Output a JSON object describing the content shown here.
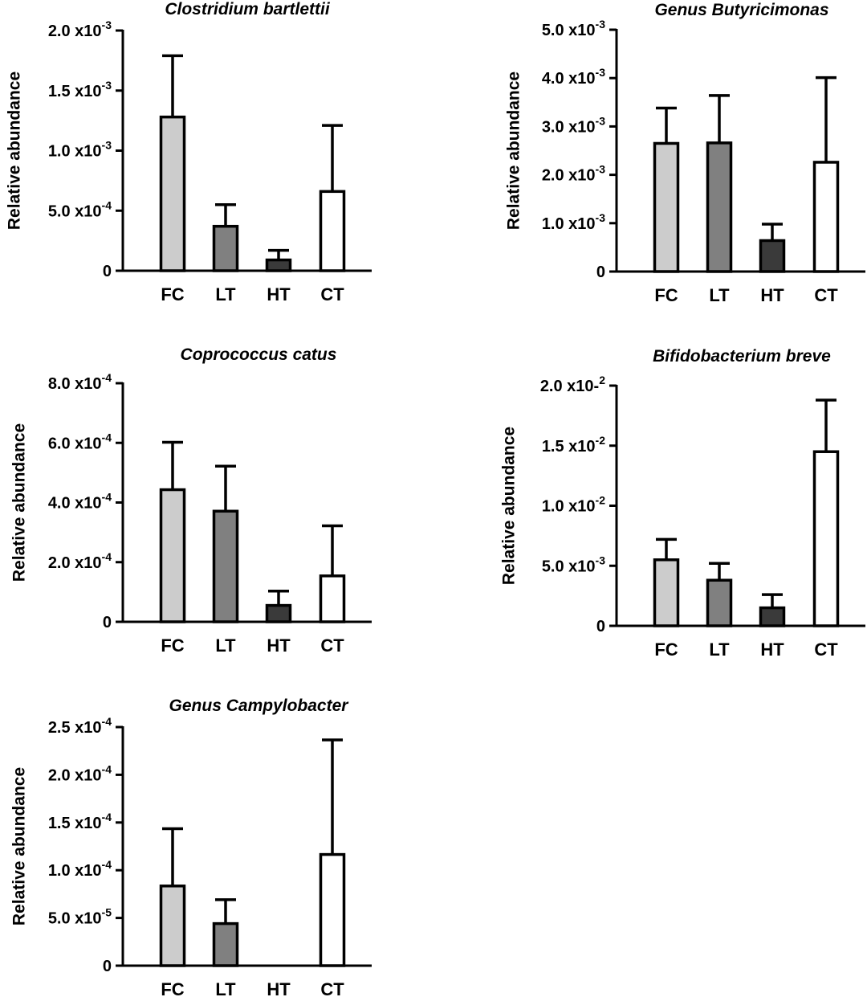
{
  "colors": {
    "FC": "#cccccc",
    "LT": "#808080",
    "HT": "#3a3a3a",
    "CT": "#ffffff",
    "stroke": "#000000"
  },
  "chart_data": [
    {
      "type": "bar",
      "title": "Clostridium bartlettii",
      "ylabel": "Relative abundance",
      "categories": [
        "FC",
        "LT",
        "HT",
        "CT"
      ],
      "values": [
        0.00128,
        0.00037,
        9e-05,
        0.00066
      ],
      "error_upper": [
        0.00179,
        0.00055,
        0.00017,
        0.00121
      ],
      "ylim": [
        0,
        0.002
      ],
      "yticks": [
        {
          "value": 0,
          "mant": "0",
          "exp": ""
        },
        {
          "value": 0.0005,
          "mant": "5.0 x10",
          "exp": "-4"
        },
        {
          "value": 0.001,
          "mant": "1.0 x10",
          "exp": "-3"
        },
        {
          "value": 0.0015,
          "mant": "1.5 x10",
          "exp": "-3"
        },
        {
          "value": 0.002,
          "mant": "2.0 x10",
          "exp": "-3"
        }
      ]
    },
    {
      "type": "bar",
      "title": "Genus Butyricimonas",
      "ylabel": "Relative abundance",
      "categories": [
        "FC",
        "LT",
        "HT",
        "CT"
      ],
      "values": [
        0.00265,
        0.00266,
        0.00064,
        0.00226
      ],
      "error_upper": [
        0.00338,
        0.00364,
        0.00098,
        0.00401
      ],
      "ylim": [
        0,
        0.005
      ],
      "yticks": [
        {
          "value": 0,
          "mant": "0",
          "exp": ""
        },
        {
          "value": 0.001,
          "mant": "1.0 x10",
          "exp": "-3"
        },
        {
          "value": 0.002,
          "mant": "2.0 x10",
          "exp": "-3"
        },
        {
          "value": 0.003,
          "mant": "3.0 x10",
          "exp": "-3"
        },
        {
          "value": 0.004,
          "mant": "4.0 x10",
          "exp": "-3"
        },
        {
          "value": 0.005,
          "mant": "5.0 x10",
          "exp": "-3"
        }
      ]
    },
    {
      "type": "bar",
      "title": "Coprococcus catus",
      "ylabel": "Relative abundance",
      "categories": [
        "FC",
        "LT",
        "HT",
        "CT"
      ],
      "values": [
        0.000443,
        0.000371,
        5.5e-05,
        0.000154
      ],
      "error_upper": [
        0.000602,
        0.000522,
        0.000103,
        0.000322
      ],
      "ylim": [
        0,
        0.0008
      ],
      "yticks": [
        {
          "value": 0,
          "mant": "0",
          "exp": ""
        },
        {
          "value": 0.0002,
          "mant": "2.0 x10",
          "exp": "-4"
        },
        {
          "value": 0.0004,
          "mant": "4.0 x10",
          "exp": "-4"
        },
        {
          "value": 0.0006,
          "mant": "6.0 x10",
          "exp": "-4"
        },
        {
          "value": 0.0008,
          "mant": "8.0 x10",
          "exp": "-4"
        }
      ]
    },
    {
      "type": "bar",
      "title": "Bifidobacterium breve",
      "ylabel": "Relative abundance",
      "categories": [
        "FC",
        "LT",
        "HT",
        "CT"
      ],
      "values": [
        0.0055,
        0.0038,
        0.0015,
        0.0145
      ],
      "error_upper": [
        0.0072,
        0.0052,
        0.0026,
        0.0188
      ],
      "ylim": [
        0,
        0.02
      ],
      "yticks": [
        {
          "value": 0,
          "mant": "0",
          "exp": ""
        },
        {
          "value": 0.005,
          "mant": "5.0 x10",
          "exp": "-3"
        },
        {
          "value": 0.01,
          "mant": "1.0 x10",
          "exp": "-2"
        },
        {
          "value": 0.015,
          "mant": "1.5 x10",
          "exp": "-2"
        },
        {
          "value": 0.02,
          "mant": "2.0 x10-",
          "exp": "2"
        }
      ]
    },
    {
      "type": "bar",
      "title": "Genus Campylobacter",
      "ylabel": "Relative abundance",
      "categories": [
        "FC",
        "LT",
        "HT",
        "CT"
      ],
      "values": [
        8.35e-05,
        4.41e-05,
        0,
        0.0001165
      ],
      "error_upper": [
        0.0001435,
        6.91e-05,
        0,
        0.0002365
      ],
      "ylim": [
        0,
        0.00025
      ],
      "yticks": [
        {
          "value": 0,
          "mant": "0",
          "exp": ""
        },
        {
          "value": 5e-05,
          "mant": "5.0 x10",
          "exp": "-5"
        },
        {
          "value": 0.0001,
          "mant": "1.0 x10",
          "exp": "-4"
        },
        {
          "value": 0.00015,
          "mant": "1.5 x10",
          "exp": "-4"
        },
        {
          "value": 0.0002,
          "mant": "2.0 x10",
          "exp": "-4"
        },
        {
          "value": 0.00025,
          "mant": "2.5 x10",
          "exp": "-4"
        }
      ]
    }
  ]
}
